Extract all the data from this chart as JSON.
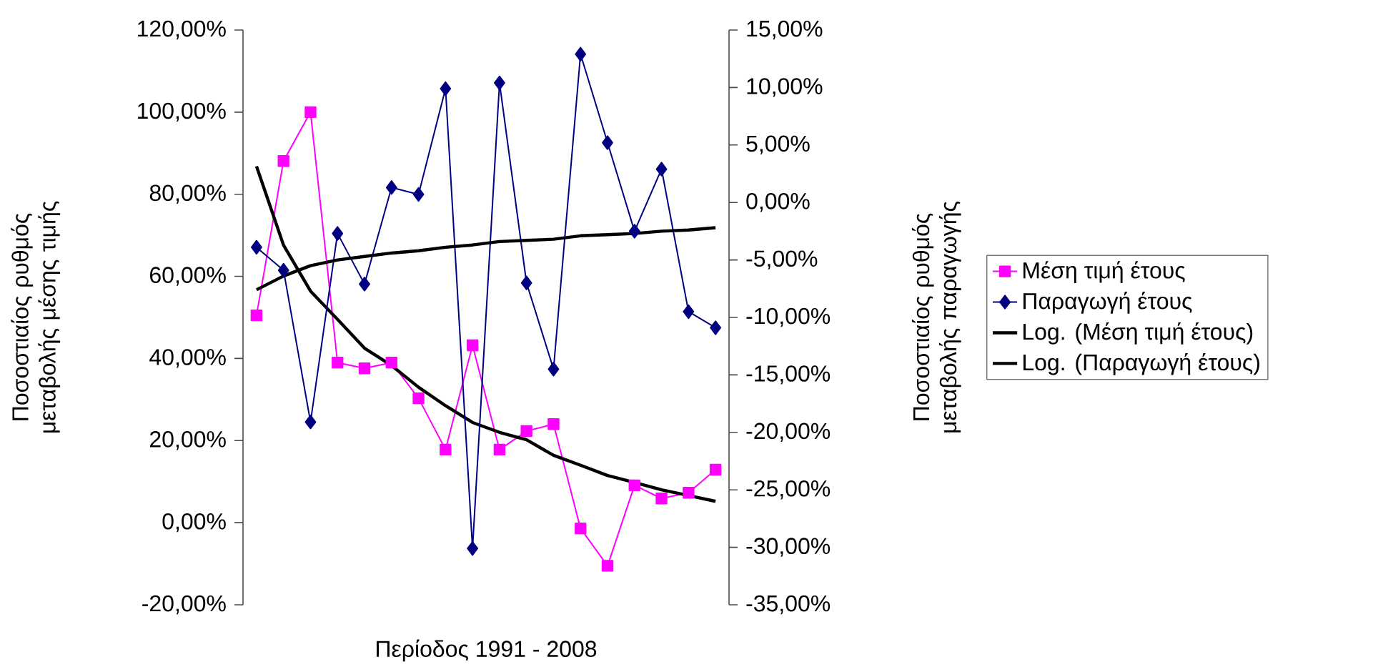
{
  "chart_data": {
    "type": "line",
    "xlabel": "Περίοδος 1991 - 2008",
    "ylabel": "Ποσοστιαίος ρυθμός μεταβολής μέσης τιμής",
    "y2label": "Ποσοστιαίος ρυθμός μεταβολής παραγωγής",
    "categories": [
      null,
      null,
      null,
      null,
      null,
      null,
      null,
      null,
      null,
      null,
      null,
      null,
      null,
      null,
      null,
      null,
      null,
      null
    ],
    "series": [
      {
        "name": "Μέση τιμή έτους",
        "color": "#ff00ff",
        "marker": "square",
        "values": [
          50.5,
          88.1,
          100,
          39,
          37.6,
          39,
          30.3,
          17.8,
          43.2,
          17.8,
          22.3,
          24,
          -1.4,
          -10.5,
          9.1,
          5.9,
          7.3,
          12.9
        ]
      },
      {
        "name": "Παραγωγή έτους",
        "color": "#000080",
        "marker": "diamond",
        "axis": "y2",
        "values": [
          -3.9,
          -5.9,
          -19.1,
          -2.7,
          -7.1,
          1.3,
          0.7,
          9.9,
          -30.1,
          10.4,
          -7.0,
          -14.5,
          12.9,
          5.2,
          -2.5,
          2.9,
          -9.5,
          -10.9
        ]
      },
      {
        "name": "Log. (Μέση τιμή έτους)",
        "color": "#000000",
        "marker": "none",
        "values": [
          86.8,
          67.6,
          56.4,
          49.5,
          42.5,
          38.3,
          33,
          28.5,
          24.4,
          22,
          20.2,
          16.4,
          14,
          11.5,
          9.8,
          8,
          6.6,
          5.2
        ]
      },
      {
        "name": "Log. (Παραγωγή έτους)",
        "color": "#000000",
        "marker": "none",
        "axis": "y2",
        "values": [
          -7.6,
          -6.4,
          -5.5,
          -5.0,
          -4.7,
          -4.4,
          -4.2,
          -3.9,
          -3.7,
          -3.4,
          -3.3,
          -3.2,
          -2.9,
          -2.8,
          -2.7,
          -2.5,
          -2.4,
          -2.2
        ]
      }
    ],
    "ylim": [
      -20,
      120
    ],
    "yticks": [
      {
        "value": -20,
        "label": "-20,00%"
      },
      {
        "value": 0,
        "label": "0,00%"
      },
      {
        "value": 20,
        "label": "20,00%"
      },
      {
        "value": 40,
        "label": "40,00%"
      },
      {
        "value": 60,
        "label": "60,00%"
      },
      {
        "value": 80,
        "label": "80,00%"
      },
      {
        "value": 100,
        "label": "100,00%"
      },
      {
        "value": 120,
        "label": "120,00%"
      }
    ],
    "y2lim": [
      -35,
      15
    ],
    "y2ticks": [
      {
        "value": -35,
        "label": "-35,00%"
      },
      {
        "value": -30,
        "label": "-30,00%"
      },
      {
        "value": -25,
        "label": "-25,00%"
      },
      {
        "value": -20,
        "label": "-20,00%"
      },
      {
        "value": -15,
        "label": "-15,00%"
      },
      {
        "value": -10,
        "label": "-10,00%"
      },
      {
        "value": -5,
        "label": "-5,00%"
      },
      {
        "value": 0,
        "label": "0,00%"
      },
      {
        "value": 5,
        "label": "5,00%"
      },
      {
        "value": 10,
        "label": "10,00%"
      },
      {
        "value": 15,
        "label": "15,00%"
      }
    ],
    "legend": "right"
  }
}
